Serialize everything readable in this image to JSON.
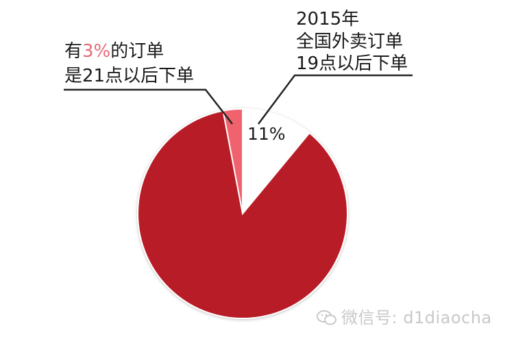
{
  "chart_data": {
    "type": "pie",
    "slices": [
      {
        "label": "21点以后下单",
        "value": 3,
        "color": "#f0626e"
      },
      {
        "label": "19点以后下单",
        "value": 11,
        "color": "#ffffff"
      },
      {
        "label": "",
        "value": 86,
        "color": "#b81b26"
      }
    ],
    "annotations": {
      "left": {
        "line1_prefix": "有",
        "line1_highlight": "3%",
        "line1_suffix": "的订单",
        "line2": "是21点以后下单",
        "highlight_color": "#e86a78"
      },
      "right": {
        "line1": "2015年",
        "line2": "全国外卖订单",
        "line3": "19点以后下单"
      },
      "slice_label": "11%"
    }
  },
  "watermark": {
    "text": "微信号: d1diaocha",
    "icon": "wechat-icon"
  }
}
